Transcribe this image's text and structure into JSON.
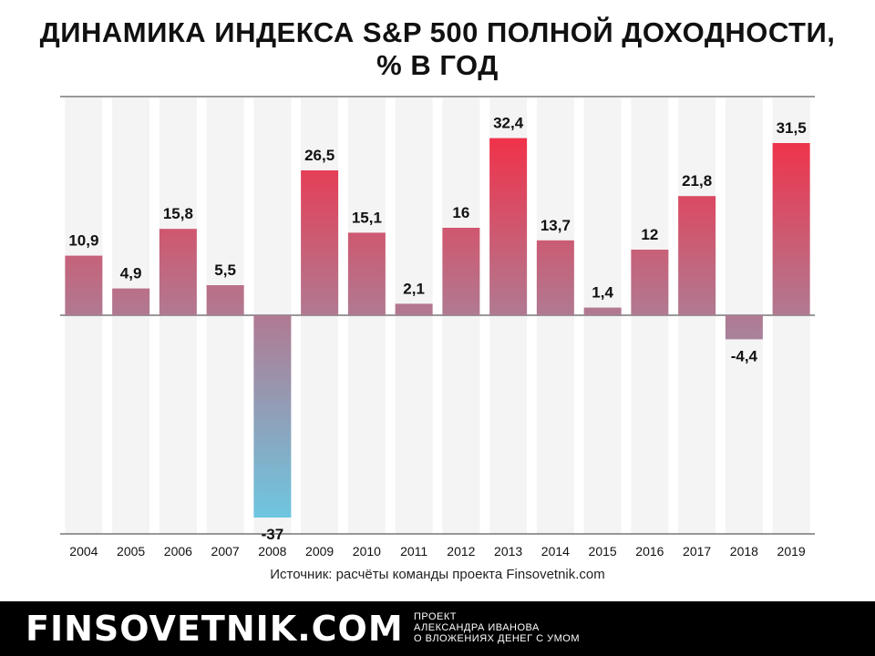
{
  "header": {
    "title_line1": "ДИНАМИКА ИНДЕКСА S&P 500 ПОЛНОЙ ДОХОДНОСТИ,",
    "title_line2": "% В ГОД"
  },
  "source": "Источник: расчёты команды проекта Finsovetnik.com",
  "footer": {
    "brand": "FINSOVETNIK.COM",
    "tagline_line1": "ПРОЕКТ",
    "tagline_line2": "АЛЕКСАНДРА ИВАНОВА",
    "tagline_line3": "О ВЛОЖЕНИЯХ ДЕНЕГ С УМОМ"
  },
  "chart_data": {
    "type": "bar",
    "title": "ДИНАМИКА ИНДЕКСА S&P 500 ПОЛНОЙ ДОХОДНОСТИ, % В ГОД",
    "xlabel": "",
    "ylabel": "",
    "categories": [
      "2004",
      "2005",
      "2006",
      "2007",
      "2008",
      "2009",
      "2010",
      "2011",
      "2012",
      "2013",
      "2014",
      "2015",
      "2016",
      "2017",
      "2018",
      "2019"
    ],
    "values": [
      10.9,
      4.9,
      15.8,
      5.5,
      -37,
      26.5,
      15.1,
      2.1,
      16,
      32.4,
      13.7,
      1.4,
      12,
      21.8,
      -4.4,
      31.5
    ],
    "value_labels": [
      "10,9",
      "4,9",
      "15,8",
      "5,5",
      "-37",
      "26,5",
      "15,1",
      "2,1",
      "16",
      "32,4",
      "13,7",
      "1,4",
      "12",
      "21,8",
      "-4,4",
      "31,5"
    ],
    "ylim": [
      -40,
      40
    ],
    "grid": false,
    "legend": "none",
    "colors": {
      "positive": "#f0324a",
      "mid": "#b07a92",
      "negative": "#6ec6e0",
      "column_background": "#f4f4f4",
      "axis": "#333333"
    }
  }
}
